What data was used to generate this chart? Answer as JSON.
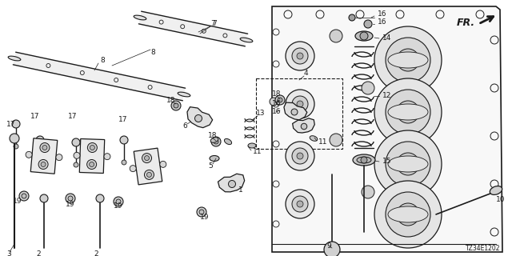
{
  "bg_color": "#ffffff",
  "line_color": "#1a1a1a",
  "diagram_code": "TZ34E1202",
  "font_size_label": 6.5,
  "figsize": [
    6.4,
    3.2
  ],
  "dpi": 100
}
